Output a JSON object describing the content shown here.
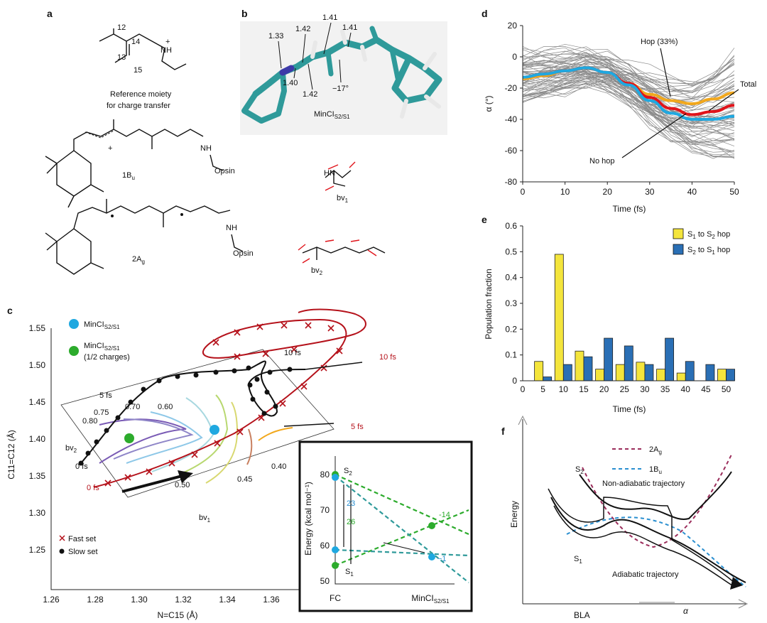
{
  "panels": {
    "a": {
      "label": "a",
      "ref_numbers": [
        "12",
        "14",
        "13",
        "15"
      ],
      "ref_nh": "NH",
      "ref_plus": "+",
      "ref_caption_1": "Reference moiety",
      "ref_caption_2": "for charge transfer",
      "state1_label": "1B",
      "state1_sub": "u",
      "state1_nh": "NH",
      "state1_opsin": "Opsin",
      "state2_label": "2A",
      "state2_sub": "g",
      "state2_nh": "NH",
      "state2_opsin": "Opsin"
    },
    "b": {
      "label": "b",
      "bond_lengths": [
        "1.33",
        "1.42",
        "1.41",
        "1.41",
        "1.40",
        "1.42"
      ],
      "angle": "−17°",
      "mol_label": "MinCI",
      "mol_sub": "S2/S1",
      "bv1": "bv",
      "bv1_sub": "1",
      "bv2": "bv",
      "bv2_sub": "2",
      "hn": "HN"
    },
    "c": {
      "label": "c",
      "legend_blue": "MinCI",
      "legend_blue_sub": "S2/S1",
      "legend_green": "MinCI",
      "legend_green_sub": "S2/S1",
      "legend_green_note": "(1/2 charges)",
      "legend_fast": "Fast set",
      "legend_slow": "Slow set",
      "xlabel": "N=C15 (Å)",
      "ylabel": "C11=C12 (Å)",
      "xticks": [
        "1.26",
        "1.28",
        "1.30",
        "1.32",
        "1.34",
        "1.36"
      ],
      "yticks": [
        "1.55",
        "1.50",
        "1.45",
        "1.40",
        "1.35",
        "1.30",
        "1.25"
      ],
      "contours": [
        "0.80",
        "0.75",
        "0.70",
        "0.60",
        "0.50",
        "0.45",
        "0.40"
      ],
      "time_black": [
        "10 fs",
        "5 fs",
        "0 fs"
      ],
      "time_red": [
        "10 fs",
        "5 fs",
        "0 fs"
      ],
      "bv1": "bv",
      "bv1_sub": "1",
      "bv2": "bv",
      "bv2_sub": "2",
      "inset": {
        "ylabel": "Energy (kcal mol⁻¹)",
        "yticks": [
          "80",
          "70",
          "60",
          "50"
        ],
        "xleft": "FC",
        "xright": "MinCI",
        "xright_sub": "S2/S1",
        "s2": "S",
        "s2_sub": "2",
        "s1": "S",
        "s1_sub": "1",
        "gap_blue": "23",
        "gap_green": "26",
        "val_green": "-14",
        "val_blue": "−1"
      }
    },
    "d": {
      "label": "d",
      "xlabel": "Time (fs)",
      "ylabel": "α (°)",
      "annot_hop": "Hop (33%)",
      "annot_total": "Total",
      "annot_nohop": "No hop"
    },
    "e": {
      "label": "e",
      "xlabel": "Time (fs)",
      "ylabel": "Population fraction",
      "legend_yellow": "S",
      "legend_yellow_rest": " to S",
      "legend_yellow_a": "1",
      "legend_yellow_b": "2",
      "legend_yellow_tail": " hop",
      "legend_blue_a": "2",
      "legend_blue_b": "1"
    },
    "f": {
      "label": "f",
      "xlabel": "BLA",
      "xlabel2": "α",
      "ylabel": "Energy",
      "legend_2ag": "2A",
      "legend_2ag_sub": "g",
      "legend_1bu": "1B",
      "legend_1bu_sub": "u",
      "s2": "S",
      "s2_sub": "2",
      "s1": "S",
      "s1_sub": "1",
      "nonadiabatic": "Non-adiabatic trajectory",
      "adiabatic": "Adiabatic trajectory"
    }
  },
  "colors": {
    "yellow": "#f4e53c",
    "blue": "#2a6fb5",
    "red": "#e0141b",
    "orange": "#f2a81d",
    "cyan": "#1fa8e0",
    "green": "#2cab2c",
    "teal": "#2f9a9a",
    "darkred": "#b5121b",
    "purple2ag": "#9b2d5b",
    "blue1bu": "#2a8fd0"
  },
  "chart_data": [
    {
      "panel": "d",
      "type": "line",
      "xlabel": "Time (fs)",
      "ylabel": "α (°)",
      "xlim": [
        0,
        50
      ],
      "ylim": [
        -80,
        20
      ],
      "xticks": [
        0,
        10,
        20,
        30,
        40,
        50
      ],
      "yticks": [
        20,
        0,
        -20,
        -40,
        -60,
        -80
      ],
      "series": [
        {
          "name": "Hop (33%)",
          "color": "#f2a81d",
          "x": [
            0,
            5,
            10,
            15,
            20,
            25,
            30,
            35,
            40,
            45,
            50
          ],
          "y": [
            -14,
            -12,
            -9,
            -7,
            -10,
            -17,
            -24,
            -28,
            -30,
            -27,
            -23
          ]
        },
        {
          "name": "Total",
          "color": "#e0141b",
          "x": [
            0,
            5,
            10,
            15,
            20,
            25,
            30,
            35,
            40,
            45,
            50
          ],
          "y": [
            -13,
            -11,
            -9,
            -7,
            -10,
            -17,
            -26,
            -33,
            -37,
            -35,
            -31
          ]
        },
        {
          "name": "No hop",
          "color": "#1fa8e0",
          "x": [
            0,
            5,
            10,
            15,
            20,
            25,
            30,
            35,
            40,
            45,
            50
          ],
          "y": [
            -13,
            -11,
            -9,
            -7,
            -10,
            -18,
            -28,
            -36,
            -40,
            -40,
            -38
          ]
        }
      ]
    },
    {
      "panel": "e",
      "type": "bar",
      "xlabel": "Time (fs)",
      "ylabel": "Population fraction",
      "ylim": [
        0,
        0.6
      ],
      "yticks": [
        0,
        0.1,
        0.2,
        0.3,
        0.4,
        0.5,
        0.6
      ],
      "xticks": [
        0,
        5,
        10,
        15,
        20,
        25,
        30,
        35,
        40,
        45,
        50
      ],
      "categories": [
        5,
        10,
        15,
        20,
        25,
        30,
        35,
        40,
        45,
        50
      ],
      "series": [
        {
          "name": "S1 to S2 hop",
          "color": "#f4e53c",
          "values": [
            0.075,
            0.49,
            0.115,
            0.045,
            0.063,
            0.072,
            0.045,
            0.03,
            0.0,
            0.045
          ]
        },
        {
          "name": "S2 to S1 hop",
          "color": "#2a6fb5",
          "values": [
            0.015,
            0.063,
            0.093,
            0.165,
            0.135,
            0.063,
            0.165,
            0.075,
            0.063,
            0.045
          ]
        }
      ]
    }
  ]
}
